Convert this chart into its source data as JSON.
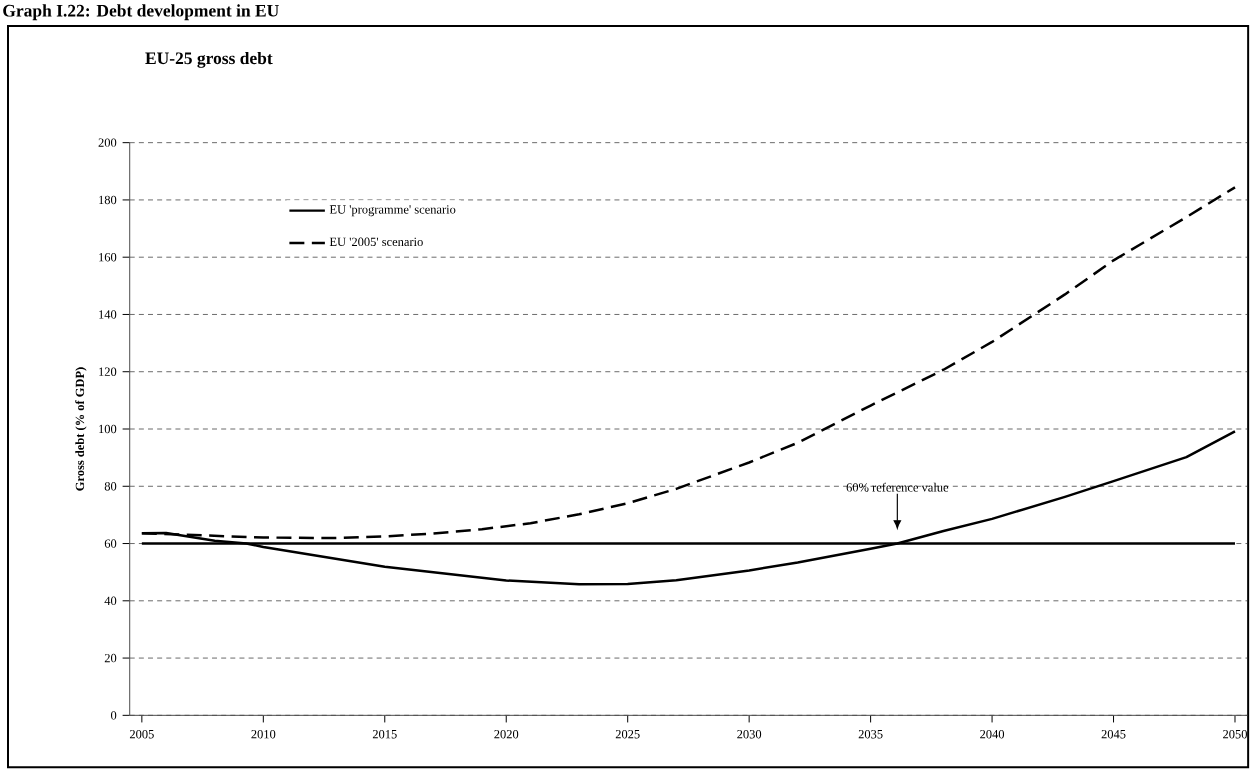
{
  "chart_data": {
    "type": "line",
    "title": "Graph I.22: Debt development in EU",
    "subtitle": "EU-25 gross debt",
    "ylabel": "Gross debt (% of GDP)",
    "xlim": [
      2004.5,
      2050.5
    ],
    "xticks": [
      2005,
      2010,
      2015,
      2020,
      2025,
      2030,
      2035,
      2040,
      2045,
      2050
    ],
    "ylim": [
      0,
      200
    ],
    "yticks": [
      0,
      20,
      40,
      60,
      80,
      100,
      120,
      140,
      160,
      180,
      200
    ],
    "grid": "y",
    "legend": "top left",
    "marker": "none",
    "series": [
      {
        "name": "EU 'programme' scenario",
        "color": "#000000",
        "line_style": "solid",
        "x": [
          2005,
          2006,
          2008,
          2009.3,
          2010,
          2015,
          2020,
          2023,
          2025,
          2027,
          2030,
          2032,
          2035,
          2036.1,
          2038,
          2040,
          2043,
          2045,
          2048,
          2050
        ],
        "values": [
          63.6,
          63.7,
          61,
          60,
          58.8,
          51.9,
          47.1,
          45.8,
          45.9,
          47.2,
          50.6,
          53.4,
          58.2,
          60,
          64.4,
          68.6,
          76.3,
          81.8,
          90.2,
          99.2
        ]
      },
      {
        "name": "EU '2005' scenario",
        "color": "#000000",
        "line_style": "dashed",
        "x": [
          2005,
          2010,
          2013,
          2015,
          2017,
          2019,
          2021,
          2023,
          2025,
          2027,
          2030,
          2032,
          2035,
          2038,
          2040,
          2043,
          2045,
          2048,
          2050
        ],
        "values": [
          63.6,
          62.1,
          61.9,
          62.5,
          63.5,
          65,
          67.1,
          70.2,
          74.1,
          79.1,
          88.3,
          95.2,
          108.2,
          120.7,
          130.4,
          147,
          158.9,
          174,
          184.4
        ]
      }
    ],
    "ref_lines": [
      {
        "axis": "y",
        "value": 60,
        "color": "#000000",
        "line_style": "solid"
      }
    ],
    "annotations": [
      "60% reference value"
    ]
  }
}
